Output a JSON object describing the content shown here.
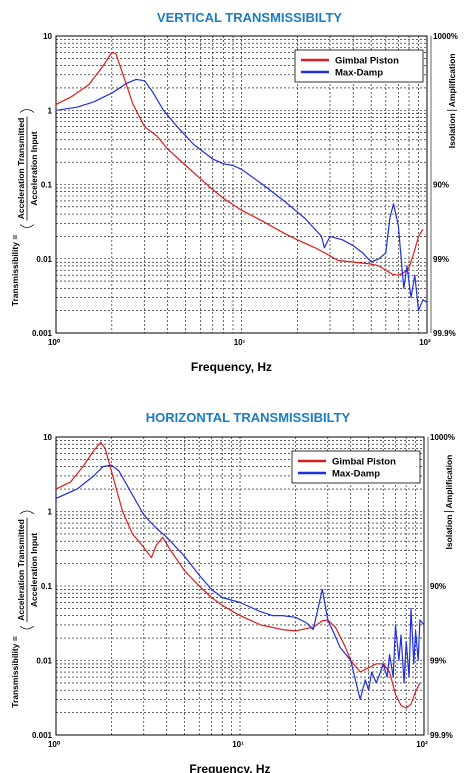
{
  "chart_data": [
    {
      "type": "line",
      "title": "VERTICAL TRANSMISSIBILTY",
      "xlabel": "Frequency, Hz",
      "ylabel_prefix": "Transmissibility =",
      "ylabel_numerator": "Acceleration Transmitted",
      "ylabel_denominator": "Acceleration Input",
      "right_axis_label_top": "Amplification",
      "right_axis_label_bottom": "Isolation",
      "xscale": "log",
      "yscale": "log",
      "xlim": [
        1,
        100
      ],
      "ylim": [
        0.001,
        10
      ],
      "x_ticks": [
        "10⁰",
        "10¹",
        "10²"
      ],
      "y_ticks": [
        "10",
        "1",
        "0.1",
        "0.01",
        "0.001"
      ],
      "right_ticks": [
        {
          "at": 10,
          "label": "1000%"
        },
        {
          "at": 0.1,
          "label": "90%"
        },
        {
          "at": 0.01,
          "label": "99%"
        },
        {
          "at": 0.001,
          "label": "99.9%"
        }
      ],
      "legend_position": "top-right",
      "grid": true,
      "series": [
        {
          "name": "Gimbal Piston",
          "color": "#e01b1b",
          "x": [
            1,
            1.2,
            1.5,
            1.8,
            2.0,
            2.1,
            2.3,
            2.6,
            3.0,
            3.5,
            4,
            5,
            6,
            7,
            8,
            10,
            13,
            17,
            20,
            25,
            30,
            33,
            40,
            50,
            55,
            60,
            65,
            70,
            75,
            80,
            85,
            90,
            95
          ],
          "y": [
            1.2,
            1.5,
            2.2,
            4.0,
            6.0,
            5.8,
            3.0,
            1.2,
            0.6,
            0.45,
            0.3,
            0.18,
            0.12,
            0.085,
            0.065,
            0.045,
            0.032,
            0.022,
            0.018,
            0.014,
            0.011,
            0.0095,
            0.009,
            0.0085,
            0.008,
            0.007,
            0.0062,
            0.006,
            0.0065,
            0.0075,
            0.012,
            0.02,
            0.025
          ]
        },
        {
          "name": "Max-Damp",
          "color": "#1f2fe0",
          "x": [
            1,
            1.3,
            1.6,
            2.0,
            2.4,
            2.7,
            3.0,
            3.3,
            3.8,
            4.5,
            5.5,
            7,
            8,
            9,
            10,
            13,
            17,
            22,
            27,
            28,
            30,
            35,
            40,
            45,
            50,
            55,
            60,
            63,
            66,
            70,
            75,
            78,
            82,
            86,
            90,
            95,
            100
          ],
          "y": [
            1.0,
            1.1,
            1.3,
            1.7,
            2.3,
            2.6,
            2.5,
            1.8,
            1.0,
            0.6,
            0.35,
            0.22,
            0.19,
            0.18,
            0.16,
            0.1,
            0.06,
            0.035,
            0.02,
            0.014,
            0.02,
            0.018,
            0.015,
            0.012,
            0.009,
            0.01,
            0.012,
            0.035,
            0.055,
            0.028,
            0.004,
            0.008,
            0.003,
            0.006,
            0.002,
            0.0028,
            0.0026
          ]
        }
      ]
    },
    {
      "type": "line",
      "title": "HORIZONTAL TRANSMISSIBILTY",
      "xlabel": "Frequency, Hz",
      "ylabel_prefix": "Transmissibility =",
      "ylabel_numerator": "Acceleration Transmitted",
      "ylabel_denominator": "Acceleration Input",
      "right_axis_label_top": "Amplification",
      "right_axis_label_bottom": "Isolation",
      "xscale": "log",
      "yscale": "log",
      "xlim": [
        1,
        100
      ],
      "ylim": [
        0.001,
        10
      ],
      "x_ticks": [
        "10⁰",
        "10¹",
        "10²"
      ],
      "y_ticks": [
        "10",
        "1",
        "0.1",
        "0.01",
        "0.001"
      ],
      "right_ticks": [
        {
          "at": 10,
          "label": "1000%"
        },
        {
          "at": 0.1,
          "label": "90%"
        },
        {
          "at": 0.01,
          "label": "99%"
        },
        {
          "at": 0.001,
          "label": "99.9%"
        }
      ],
      "legend_position": "top-right",
      "grid": true,
      "series": [
        {
          "name": "Gimbal Piston",
          "color": "#e01b1b",
          "x": [
            1,
            1.2,
            1.4,
            1.6,
            1.75,
            1.85,
            2.0,
            2.3,
            2.6,
            3.0,
            3.3,
            3.5,
            3.8,
            4.2,
            5,
            6,
            7,
            8,
            10,
            13,
            17,
            20,
            25,
            28,
            30,
            33,
            37,
            40,
            45,
            50,
            55,
            60,
            65,
            70,
            75,
            80,
            85,
            90,
            95
          ],
          "y": [
            2.0,
            2.5,
            4.0,
            6.5,
            8.5,
            7.0,
            3.5,
            1.0,
            0.5,
            0.33,
            0.24,
            0.35,
            0.45,
            0.3,
            0.16,
            0.1,
            0.07,
            0.055,
            0.04,
            0.03,
            0.026,
            0.025,
            0.028,
            0.034,
            0.035,
            0.028,
            0.016,
            0.01,
            0.007,
            0.008,
            0.009,
            0.009,
            0.007,
            0.0035,
            0.0025,
            0.0023,
            0.0026,
            0.0038,
            0.005
          ]
        },
        {
          "name": "Max-Damp",
          "color": "#1f2fe0",
          "x": [
            1,
            1.3,
            1.6,
            1.8,
            2.0,
            2.2,
            2.5,
            3.0,
            3.5,
            4.0,
            5,
            6,
            7,
            8,
            10,
            13,
            15,
            17,
            20,
            23,
            25,
            27,
            28,
            30,
            32,
            35,
            40,
            42,
            45,
            48,
            50,
            52,
            55,
            58,
            60,
            63,
            65,
            68,
            70,
            73,
            75,
            78,
            80,
            83,
            85,
            88,
            90,
            93,
            95,
            100
          ],
          "y": [
            1.5,
            2.0,
            3.0,
            4.0,
            4.2,
            3.5,
            2.0,
            0.9,
            0.6,
            0.45,
            0.25,
            0.14,
            0.09,
            0.07,
            0.06,
            0.045,
            0.04,
            0.04,
            0.038,
            0.032,
            0.026,
            0.06,
            0.09,
            0.035,
            0.025,
            0.015,
            0.01,
            0.006,
            0.003,
            0.0055,
            0.004,
            0.007,
            0.005,
            0.007,
            0.009,
            0.006,
            0.012,
            0.006,
            0.03,
            0.01,
            0.022,
            0.005,
            0.018,
            0.006,
            0.05,
            0.009,
            0.025,
            0.01,
            0.035,
            0.03
          ]
        }
      ]
    }
  ]
}
